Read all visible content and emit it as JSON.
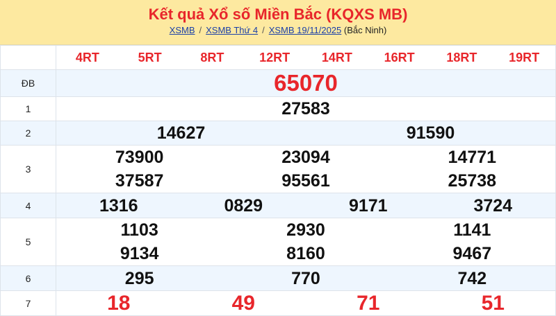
{
  "title": "Kết quả Xổ số Miền Bắc (KQXS MB)",
  "breadcrumb": {
    "items": [
      "XSMB",
      "XSMB Thứ 4",
      "XSMB 19/11/2025"
    ],
    "separator": "/",
    "province": "(Bắc Ninh)"
  },
  "codes": [
    "4RT",
    "5RT",
    "8RT",
    "12RT",
    "14RT",
    "16RT",
    "18RT",
    "19RT"
  ],
  "prizes": [
    {
      "label": "ĐB",
      "rows": [
        [
          "65070"
        ]
      ]
    },
    {
      "label": "1",
      "rows": [
        [
          "27583"
        ]
      ]
    },
    {
      "label": "2",
      "rows": [
        [
          "14627",
          "91590"
        ]
      ]
    },
    {
      "label": "3",
      "rows": [
        [
          "73900",
          "23094",
          "14771"
        ],
        [
          "37587",
          "95561",
          "25738"
        ]
      ]
    },
    {
      "label": "4",
      "rows": [
        [
          "1316",
          "0829",
          "9171",
          "3724"
        ]
      ]
    },
    {
      "label": "5",
      "rows": [
        [
          "1103",
          "2930",
          "1141"
        ],
        [
          "9134",
          "8160",
          "9467"
        ]
      ]
    },
    {
      "label": "6",
      "rows": [
        [
          "295",
          "770",
          "742"
        ]
      ]
    },
    {
      "label": "7",
      "rows": [
        [
          "18",
          "49",
          "71",
          "51"
        ]
      ]
    }
  ],
  "colors": {
    "accent": "#e8262b",
    "header_bg": "#fde9a0",
    "alt_row": "#eef6fe",
    "link": "#1a3fa8"
  }
}
